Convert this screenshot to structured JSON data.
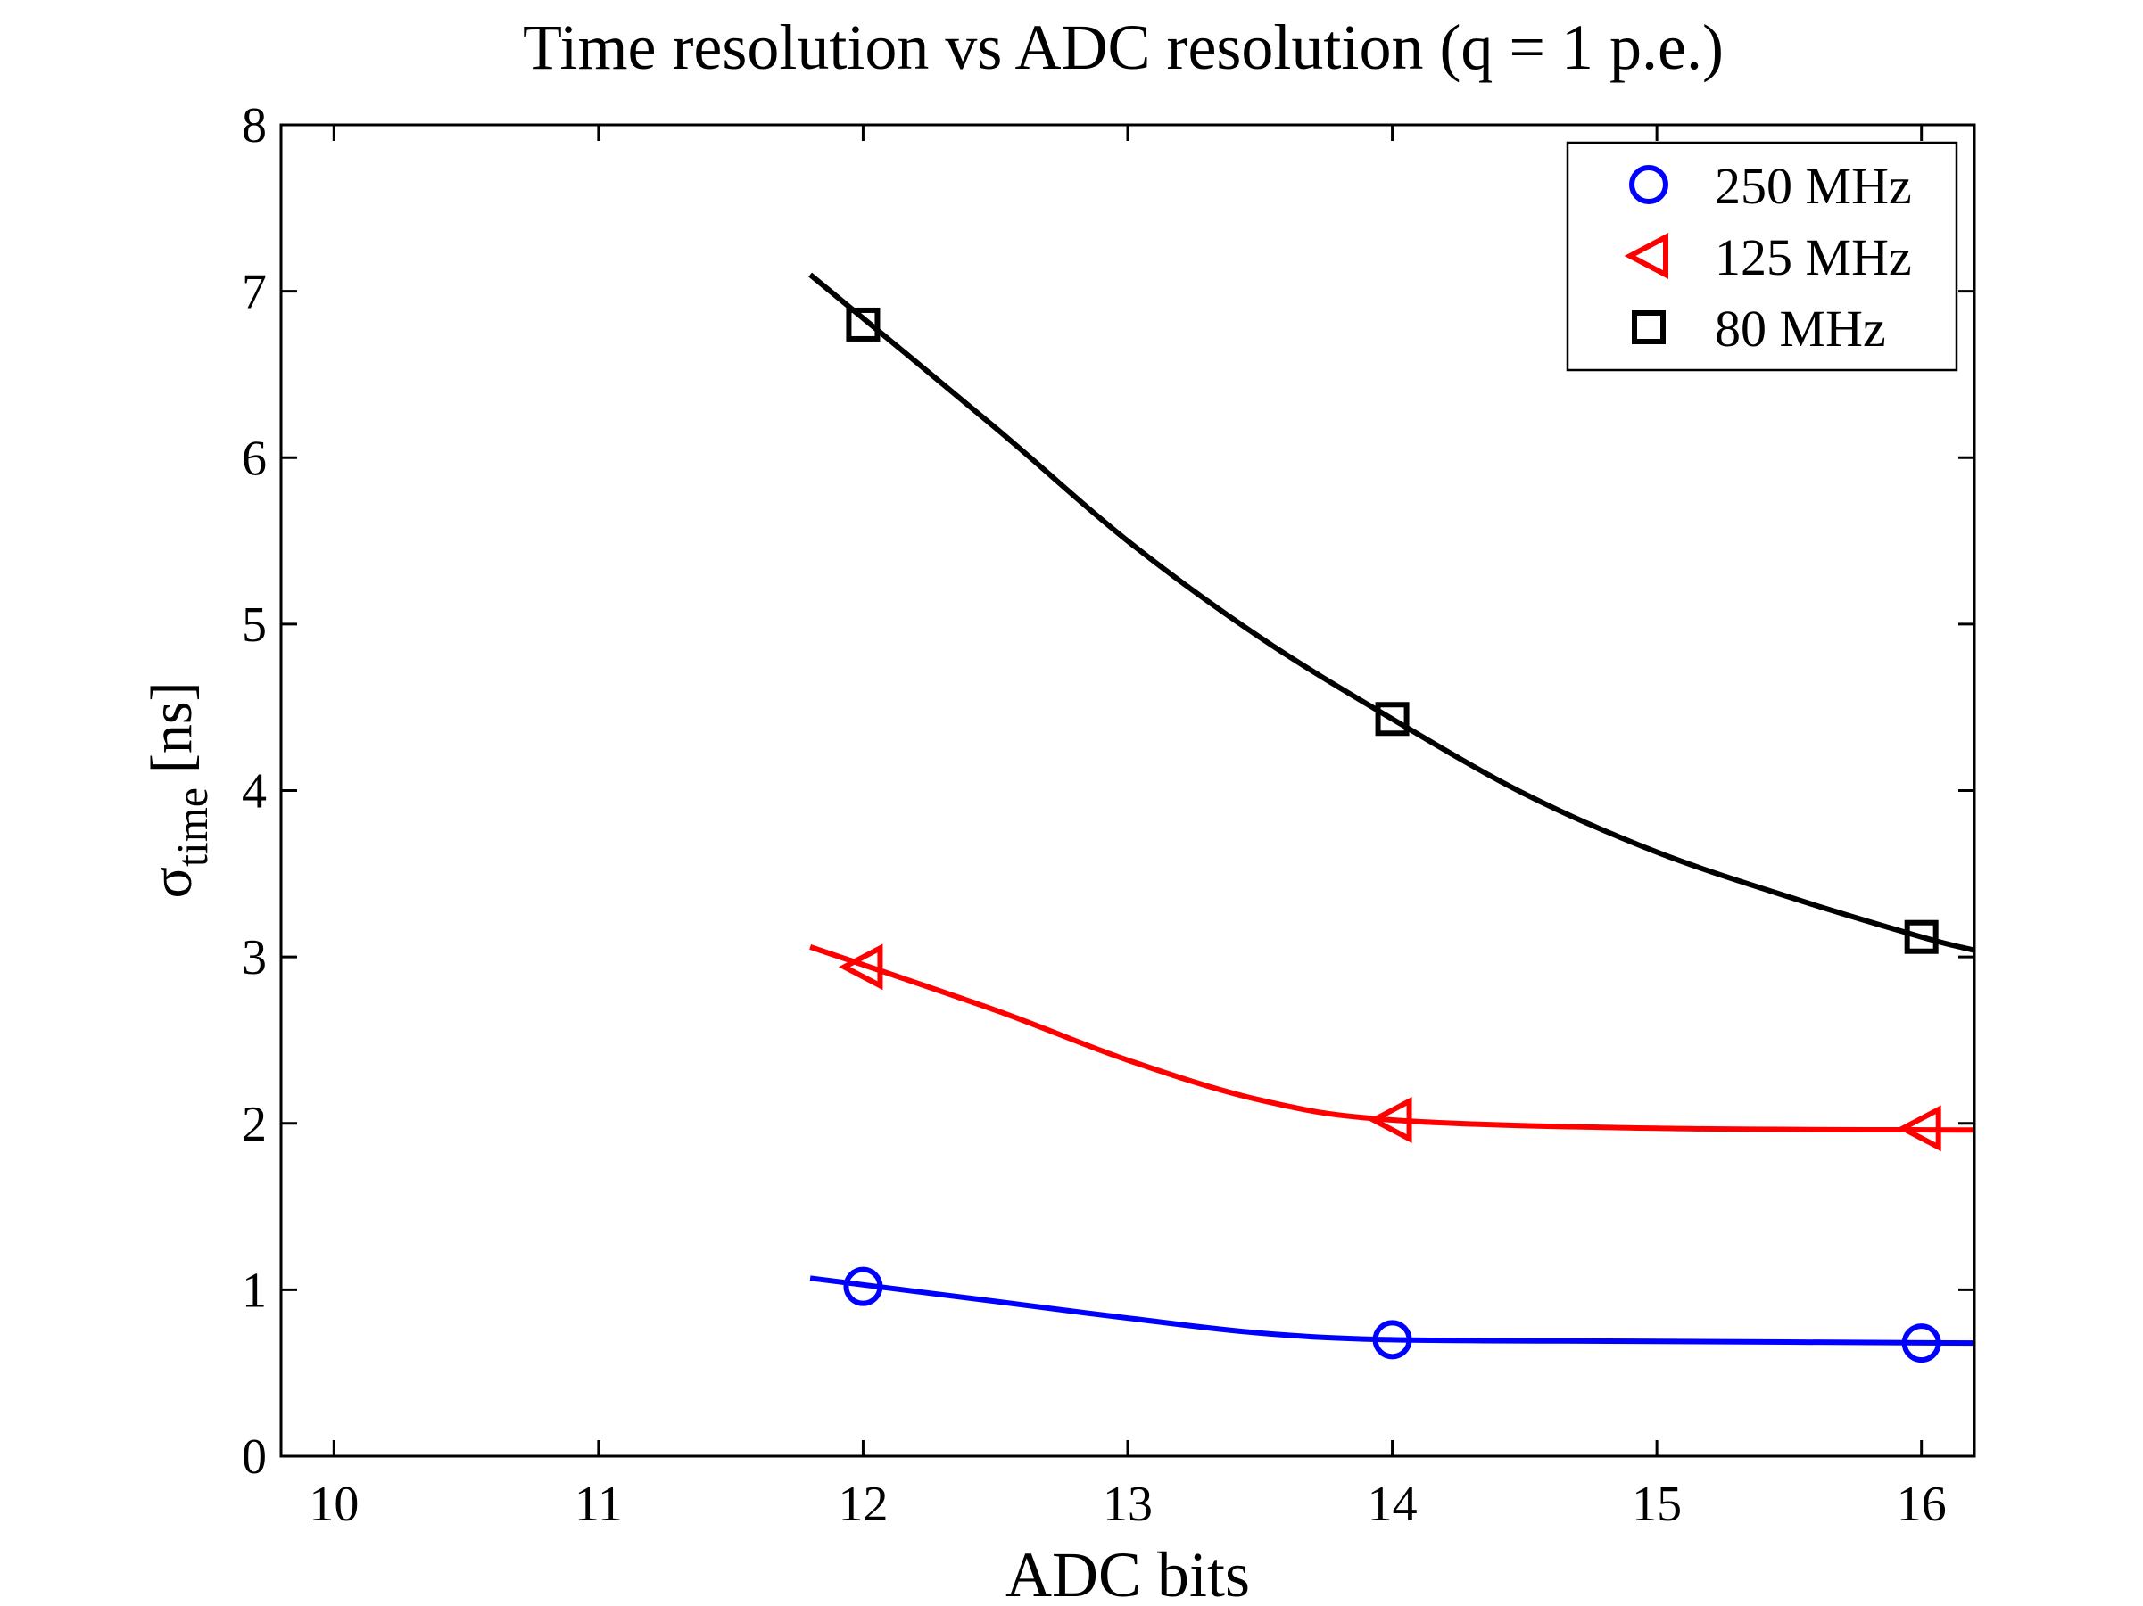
{
  "chart_data": {
    "type": "line",
    "title": "Time resolution vs ADC resolution (q = 1 p.e.)",
    "xlabel": "ADC bits",
    "ylabel": {
      "symbol": "σ",
      "subscript": "time",
      "unit": "[ns]"
    },
    "xlim": [
      9.8,
      16.2
    ],
    "ylim": [
      0,
      8
    ],
    "xticks": [
      "10",
      "11",
      "12",
      "13",
      "14",
      "15",
      "16"
    ],
    "yticks": [
      "0",
      "1",
      "2",
      "3",
      "4",
      "5",
      "6",
      "7",
      "8"
    ],
    "grid": false,
    "legend_position": "top-right",
    "series": [
      {
        "name": "250 MHz",
        "color": "#0000ff",
        "marker": "circle",
        "x": [
          12,
          14,
          16
        ],
        "y": [
          1.02,
          0.7,
          0.68
        ],
        "fit": [
          [
            11.8,
            1.07
          ],
          [
            12.5,
            0.93
          ],
          [
            13.0,
            0.83
          ],
          [
            13.5,
            0.74
          ],
          [
            14.0,
            0.7
          ],
          [
            15.0,
            0.69
          ],
          [
            16.2,
            0.68
          ]
        ]
      },
      {
        "name": "125 MHz",
        "color": "#ff0000",
        "marker": "triangle-left",
        "x": [
          12,
          14,
          16
        ],
        "y": [
          2.94,
          2.02,
          1.97
        ],
        "fit": [
          [
            11.8,
            3.06
          ],
          [
            12.5,
            2.68
          ],
          [
            13.0,
            2.38
          ],
          [
            13.5,
            2.14
          ],
          [
            14.0,
            2.02
          ],
          [
            15.0,
            1.97
          ],
          [
            16.2,
            1.96
          ]
        ]
      },
      {
        "name": "80 MHz",
        "color": "#000000",
        "marker": "square",
        "x": [
          12,
          14,
          16
        ],
        "y": [
          6.8,
          4.43,
          3.12
        ],
        "fit": [
          [
            11.8,
            7.1
          ],
          [
            12.5,
            6.18
          ],
          [
            13.0,
            5.5
          ],
          [
            13.5,
            4.92
          ],
          [
            14.0,
            4.43
          ],
          [
            14.5,
            3.98
          ],
          [
            15.0,
            3.63
          ],
          [
            15.5,
            3.36
          ],
          [
            16.0,
            3.12
          ],
          [
            16.2,
            3.04
          ]
        ]
      }
    ]
  }
}
